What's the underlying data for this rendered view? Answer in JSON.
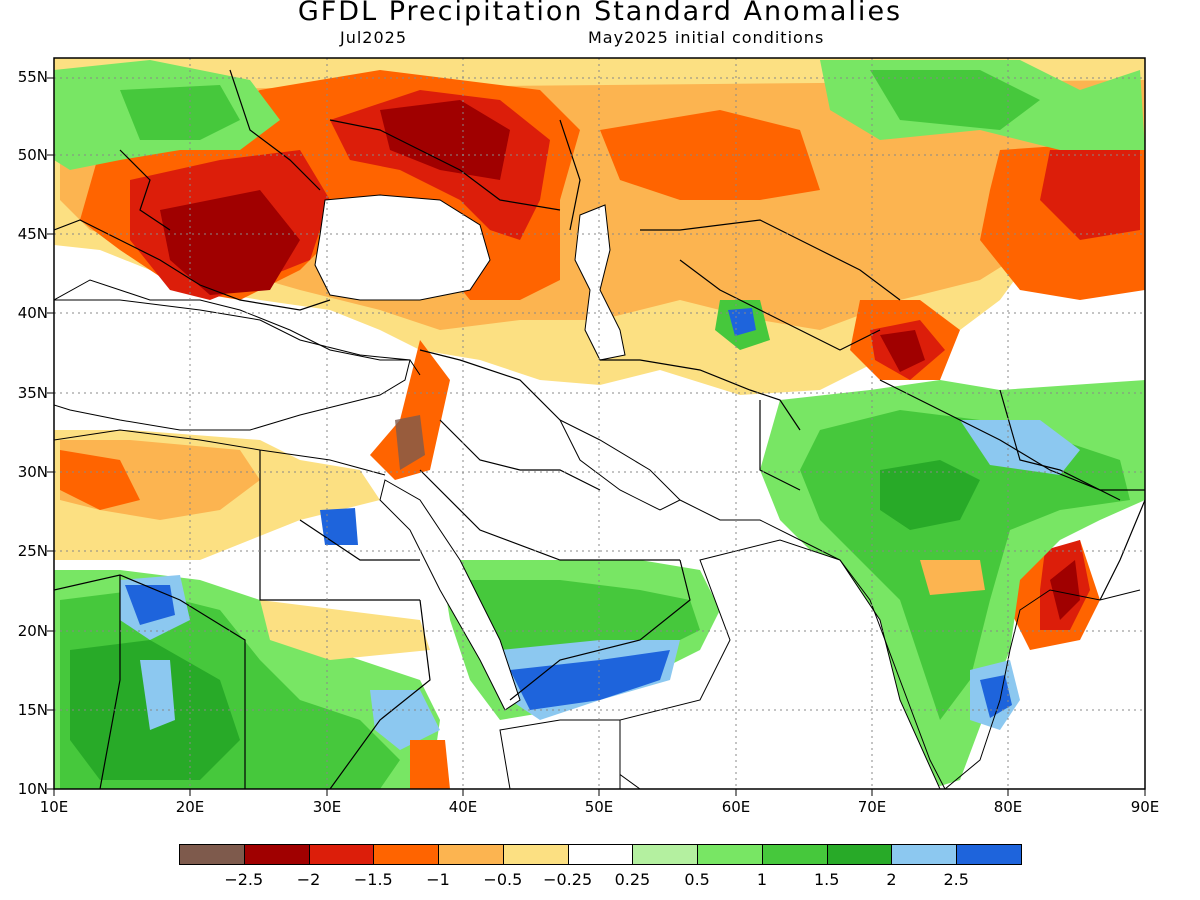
{
  "header": {
    "title": "GFDL Precipitation Standard Anomalies",
    "valid_month": "Jul2025",
    "initial_conditions": "May2025 initial conditions"
  },
  "axes": {
    "lon_labels": [
      "10E",
      "20E",
      "30E",
      "40E",
      "50E",
      "60E",
      "70E",
      "80E",
      "90E"
    ],
    "lat_labels": [
      "55N",
      "50N",
      "45N",
      "40N",
      "35N",
      "30N",
      "25N",
      "20N",
      "15N",
      "10N"
    ],
    "lon_range": [
      10,
      90
    ],
    "lat_range": [
      10,
      56
    ],
    "grid": "dotted"
  },
  "legend": {
    "labels": [
      "-2.5",
      "-2",
      "-1.5",
      "-1",
      "-0.5",
      "-0.25",
      "0.25",
      "0.5",
      "1",
      "1.5",
      "2",
      "2.5"
    ],
    "colors": [
      "#7e5a4c",
      "#a00000",
      "#dc1e0a",
      "#ff6400",
      "#fcb450",
      "#fce082",
      "#ffffff",
      "#b4f0a0",
      "#78e664",
      "#46c83c",
      "#28aa28",
      "#8cc8f0",
      "#1e64dc"
    ],
    "placement": "bottom"
  },
  "colors": {
    "land_outline": "#000000",
    "grid": "#888888"
  }
}
